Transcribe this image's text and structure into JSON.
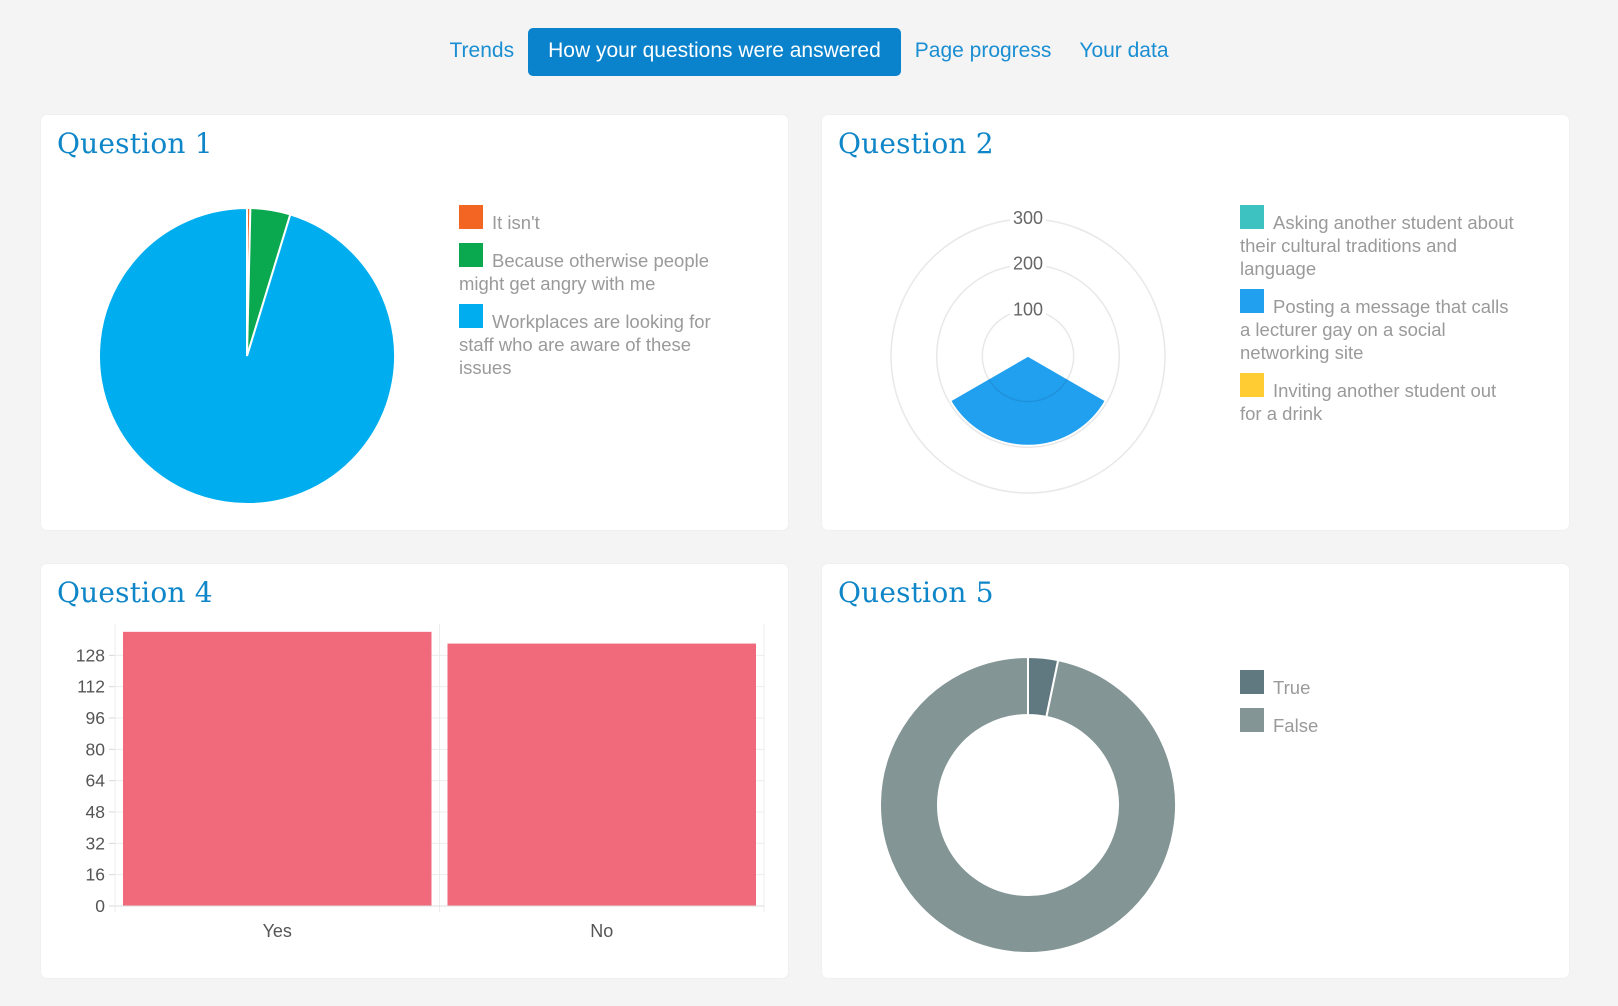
{
  "tabs": [
    {
      "label": "Trends",
      "active": false
    },
    {
      "label": "How your questions were answered",
      "active": true
    },
    {
      "label": "Page progress",
      "active": false
    },
    {
      "label": "Your data",
      "active": false
    }
  ],
  "cards": {
    "q1": {
      "title": "Question 1",
      "legend": [
        {
          "label": "It isn't",
          "color": "#f26522"
        },
        {
          "label": "Because otherwise people might get angry with me",
          "color": "#0aa84f"
        },
        {
          "label": "Workplaces are looking for staff who are aware of these issues",
          "color": "#00aeef"
        }
      ]
    },
    "q2": {
      "title": "Question 2",
      "legend": [
        {
          "label": "Asking another student about their cultural traditions and language",
          "color": "#3ec1c1"
        },
        {
          "label": "Posting a message that calls a lecturer gay on a social networking site",
          "color": "#22a0f0"
        },
        {
          "label": "Inviting another student out for a drink",
          "color": "#ffcc33"
        }
      ]
    },
    "q4": {
      "title": "Question 4"
    },
    "q5": {
      "title": "Question 5",
      "legend": [
        {
          "label": "True",
          "color": "#607880"
        },
        {
          "label": "False",
          "color": "#849596"
        }
      ]
    }
  },
  "chart_data": [
    {
      "type": "pie",
      "categories": [
        "It isn't",
        "Because otherwise people might get angry with me",
        "Workplaces are looking for staff who are aware of these issues"
      ],
      "values": [
        1,
        12,
        262
      ],
      "colors": [
        "#f26522",
        "#0aa84f",
        "#00aeef"
      ]
    },
    {
      "type": "polar-area",
      "categories": [
        "Asking another student about their cultural traditions and language",
        "Posting a message that calls a lecturer gay on a social networking site",
        "Inviting another student out for a drink"
      ],
      "values": [
        0,
        196,
        0
      ],
      "colors": [
        "#3ec1c1",
        "#22a0f0",
        "#ffcc33"
      ],
      "r_ticks": [
        100,
        200,
        300
      ],
      "rlim": [
        0,
        300
      ]
    },
    {
      "type": "bar",
      "categories": [
        "Yes",
        "No"
      ],
      "values": [
        140,
        134
      ],
      "color": "#f06a7c",
      "y_ticks": [
        0,
        16,
        32,
        48,
        64,
        80,
        96,
        112,
        128
      ],
      "ylim": [
        0,
        144
      ],
      "grid": true
    },
    {
      "type": "pie",
      "variant": "doughnut",
      "categories": [
        "True",
        "False"
      ],
      "values": [
        9,
        266
      ],
      "colors": [
        "#607880",
        "#849596"
      ]
    }
  ]
}
